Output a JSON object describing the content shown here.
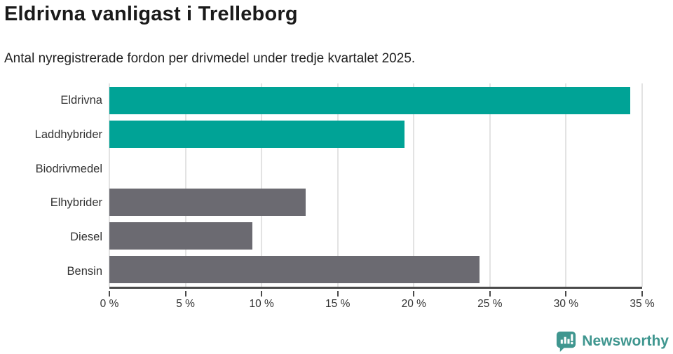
{
  "header": {
    "title": "Eldrivna vanligast i Trelleborg",
    "subtitle": "Antal nyregistrerade fordon per drivmedel under tredje kvartalet 2025."
  },
  "chart_data": {
    "type": "bar",
    "orientation": "horizontal",
    "title": "Eldrivna vanligast i Trelleborg",
    "subtitle": "Antal nyregistrerade fordon per drivmedel under tredje kvartalet 2025.",
    "categories": [
      "Eldrivna",
      "Laddhybrider",
      "Biodrivmedel",
      "Elhybrider",
      "Diesel",
      "Bensin"
    ],
    "values": [
      34.2,
      19.4,
      0,
      12.9,
      9.4,
      24.3
    ],
    "value_unit": "%",
    "bar_colors": [
      "#00a396",
      "#00a396",
      "#00a396",
      "#6b6a71",
      "#6b6a71",
      "#6b6a71"
    ],
    "xlabel": "",
    "ylabel": "",
    "xlim": [
      0,
      35
    ],
    "x_tick_values": [
      0,
      5,
      10,
      15,
      20,
      25,
      30,
      35
    ],
    "x_tick_labels": [
      "0 %",
      "5 %",
      "10 %",
      "15 %",
      "20 %",
      "25 %",
      "30 %",
      "35 %"
    ],
    "grid": "vertical",
    "gridline_color": "#e3e3e3",
    "axis_color": "#4a4a4a",
    "legend": "none"
  },
  "footer": {
    "brand": "Newsworthy",
    "brand_color": "#3f968f",
    "logo_icon": "bar-chart-speech-bubble-icon"
  }
}
